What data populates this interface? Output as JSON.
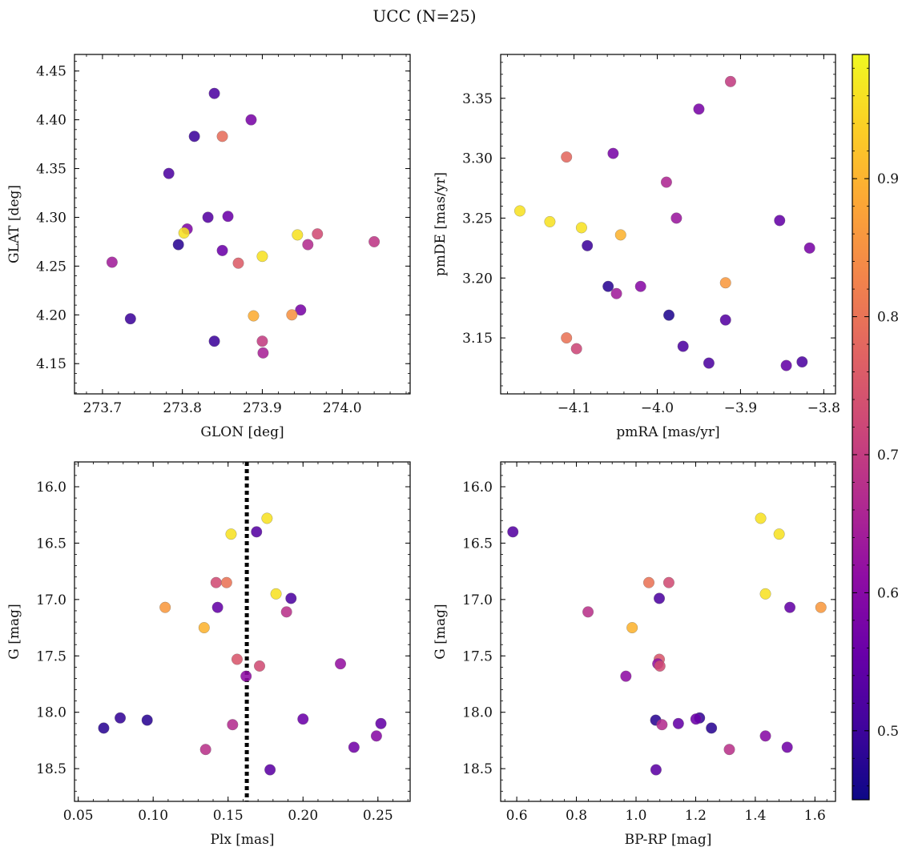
{
  "figure": {
    "title": "UCC (N=25)"
  },
  "colors": {
    "colormap": "plasma",
    "ref_line": "#000000"
  },
  "chart_data": [
    {
      "type": "scatter",
      "xlabel": "GLON [deg]",
      "ylabel": "GLAT [deg]",
      "xlim": [
        273.665,
        274.085
      ],
      "ylim": [
        4.119,
        4.467
      ],
      "xticks": [
        273.7,
        273.8,
        273.9,
        274.0
      ],
      "xtick_labels": [
        "273.7",
        "273.8",
        "273.9",
        "274.0"
      ],
      "yticks": [
        4.15,
        4.2,
        4.25,
        4.3,
        4.35,
        4.4,
        4.45
      ],
      "ytick_labels": [
        "4.15",
        "4.20",
        "4.25",
        "4.30",
        "4.35",
        "4.40",
        "4.45"
      ],
      "points": [
        {
          "x": 273.84,
          "y": 4.427,
          "c": 0.52
        },
        {
          "x": 273.886,
          "y": 4.4,
          "c": 0.58
        },
        {
          "x": 273.815,
          "y": 4.383,
          "c": 0.5
        },
        {
          "x": 273.85,
          "y": 4.383,
          "c": 0.79
        },
        {
          "x": 273.783,
          "y": 4.345,
          "c": 0.52
        },
        {
          "x": 273.857,
          "y": 4.301,
          "c": 0.56
        },
        {
          "x": 273.832,
          "y": 4.3,
          "c": 0.53
        },
        {
          "x": 273.806,
          "y": 4.288,
          "c": 0.59
        },
        {
          "x": 273.802,
          "y": 4.284,
          "c": 0.96
        },
        {
          "x": 273.969,
          "y": 4.283,
          "c": 0.73
        },
        {
          "x": 273.944,
          "y": 4.282,
          "c": 0.96
        },
        {
          "x": 274.04,
          "y": 4.275,
          "c": 0.69
        },
        {
          "x": 273.795,
          "y": 4.272,
          "c": 0.48
        },
        {
          "x": 273.957,
          "y": 4.272,
          "c": 0.67
        },
        {
          "x": 273.85,
          "y": 4.266,
          "c": 0.56
        },
        {
          "x": 273.9,
          "y": 4.26,
          "c": 0.96
        },
        {
          "x": 273.87,
          "y": 4.253,
          "c": 0.76
        },
        {
          "x": 273.712,
          "y": 4.254,
          "c": 0.64
        },
        {
          "x": 273.948,
          "y": 4.205,
          "c": 0.58
        },
        {
          "x": 273.889,
          "y": 4.199,
          "c": 0.89
        },
        {
          "x": 273.937,
          "y": 4.2,
          "c": 0.85
        },
        {
          "x": 273.735,
          "y": 4.196,
          "c": 0.5
        },
        {
          "x": 273.84,
          "y": 4.173,
          "c": 0.5
        },
        {
          "x": 273.9,
          "y": 4.173,
          "c": 0.7
        },
        {
          "x": 273.901,
          "y": 4.161,
          "c": 0.65
        }
      ]
    },
    {
      "type": "scatter",
      "xlabel": "pmRA [mas/yr]",
      "ylabel": "pmDE [mas/yr]",
      "xlim": [
        -4.1881,
        -3.7859
      ],
      "ylim": [
        3.1033,
        3.3866
      ],
      "xticks": [
        -4.1,
        -4.0,
        -3.9,
        -3.8
      ],
      "xtick_labels": [
        "−4.1",
        "−4.0",
        "−3.9",
        "−3.8"
      ],
      "yticks": [
        3.15,
        3.2,
        3.25,
        3.3,
        3.35
      ],
      "ytick_labels": [
        "3.15",
        "3.20",
        "3.25",
        "3.30",
        "3.35"
      ],
      "points": [
        {
          "x": -3.912,
          "y": 3.364,
          "c": 0.7
        },
        {
          "x": -3.95,
          "y": 3.341,
          "c": 0.58
        },
        {
          "x": -4.053,
          "y": 3.304,
          "c": 0.58
        },
        {
          "x": -4.109,
          "y": 3.301,
          "c": 0.78
        },
        {
          "x": -3.989,
          "y": 3.28,
          "c": 0.66
        },
        {
          "x": -4.165,
          "y": 3.256,
          "c": 0.96
        },
        {
          "x": -3.977,
          "y": 3.25,
          "c": 0.63
        },
        {
          "x": -4.129,
          "y": 3.247,
          "c": 0.96
        },
        {
          "x": -3.853,
          "y": 3.248,
          "c": 0.55
        },
        {
          "x": -4.091,
          "y": 3.242,
          "c": 0.96
        },
        {
          "x": -4.044,
          "y": 3.236,
          "c": 0.9
        },
        {
          "x": -4.084,
          "y": 3.227,
          "c": 0.5
        },
        {
          "x": -3.817,
          "y": 3.225,
          "c": 0.58
        },
        {
          "x": -3.918,
          "y": 3.196,
          "c": 0.86
        },
        {
          "x": -4.059,
          "y": 3.193,
          "c": 0.48
        },
        {
          "x": -4.02,
          "y": 3.193,
          "c": 0.6
        },
        {
          "x": -4.049,
          "y": 3.187,
          "c": 0.64
        },
        {
          "x": -3.986,
          "y": 3.169,
          "c": 0.47
        },
        {
          "x": -3.918,
          "y": 3.165,
          "c": 0.53
        },
        {
          "x": -4.109,
          "y": 3.15,
          "c": 0.8
        },
        {
          "x": -3.969,
          "y": 3.143,
          "c": 0.52
        },
        {
          "x": -4.097,
          "y": 3.141,
          "c": 0.72
        },
        {
          "x": -3.938,
          "y": 3.129,
          "c": 0.52
        },
        {
          "x": -3.826,
          "y": 3.13,
          "c": 0.52
        },
        {
          "x": -3.845,
          "y": 3.127,
          "c": 0.55
        }
      ]
    },
    {
      "type": "scatter",
      "xlabel": "Plx [mas]",
      "ylabel": "G [mag]",
      "xlim": [
        0.0475,
        0.2715
      ],
      "ylim": [
        18.79,
        15.78
      ],
      "xticks": [
        0.05,
        0.1,
        0.15,
        0.2,
        0.25
      ],
      "xtick_labels": [
        "0.05",
        "0.10",
        "0.15",
        "0.20",
        "0.25"
      ],
      "yticks": [
        16.0,
        16.5,
        17.0,
        17.5,
        18.0,
        18.5
      ],
      "ytick_labels": [
        "16.0",
        "16.5",
        "17.0",
        "17.5",
        "18.0",
        "18.5"
      ],
      "vline": 0.1625,
      "points": [
        {
          "x": 0.176,
          "y": 16.28,
          "c": 0.96
        },
        {
          "x": 0.152,
          "y": 16.42,
          "c": 0.96
        },
        {
          "x": 0.169,
          "y": 16.4,
          "c": 0.53
        },
        {
          "x": 0.142,
          "y": 16.85,
          "c": 0.73
        },
        {
          "x": 0.149,
          "y": 16.85,
          "c": 0.8
        },
        {
          "x": 0.182,
          "y": 16.95,
          "c": 0.96
        },
        {
          "x": 0.192,
          "y": 16.99,
          "c": 0.52
        },
        {
          "x": 0.108,
          "y": 17.07,
          "c": 0.86
        },
        {
          "x": 0.143,
          "y": 17.07,
          "c": 0.55
        },
        {
          "x": 0.189,
          "y": 17.11,
          "c": 0.68
        },
        {
          "x": 0.134,
          "y": 17.25,
          "c": 0.9
        },
        {
          "x": 0.156,
          "y": 17.53,
          "c": 0.75
        },
        {
          "x": 0.225,
          "y": 17.57,
          "c": 0.62
        },
        {
          "x": 0.171,
          "y": 17.59,
          "c": 0.73
        },
        {
          "x": 0.162,
          "y": 17.68,
          "c": 0.61
        },
        {
          "x": 0.078,
          "y": 18.05,
          "c": 0.49
        },
        {
          "x": 0.096,
          "y": 18.07,
          "c": 0.48
        },
        {
          "x": 0.2,
          "y": 18.06,
          "c": 0.56
        },
        {
          "x": 0.252,
          "y": 18.1,
          "c": 0.55
        },
        {
          "x": 0.153,
          "y": 18.11,
          "c": 0.67
        },
        {
          "x": 0.067,
          "y": 18.14,
          "c": 0.48
        },
        {
          "x": 0.249,
          "y": 18.21,
          "c": 0.6
        },
        {
          "x": 0.234,
          "y": 18.31,
          "c": 0.57
        },
        {
          "x": 0.135,
          "y": 18.33,
          "c": 0.68
        },
        {
          "x": 0.178,
          "y": 18.51,
          "c": 0.54
        }
      ]
    },
    {
      "type": "scatter",
      "xlabel": "BP-RP [mag]",
      "ylabel": "G [mag]",
      "xlim": [
        0.546,
        1.669
      ],
      "ylim": [
        18.79,
        15.78
      ],
      "xticks": [
        0.6,
        0.8,
        1.0,
        1.2,
        1.4,
        1.6
      ],
      "xtick_labels": [
        "0.6",
        "0.8",
        "1.0",
        "1.2",
        "1.4",
        "1.6"
      ],
      "yticks": [
        16.0,
        16.5,
        17.0,
        17.5,
        18.0,
        18.5
      ],
      "ytick_labels": [
        "16.0",
        "16.5",
        "17.0",
        "17.5",
        "18.0",
        "18.5"
      ],
      "points": [
        {
          "x": 1.418,
          "y": 16.28,
          "c": 0.96
        },
        {
          "x": 0.587,
          "y": 16.4,
          "c": 0.53
        },
        {
          "x": 1.48,
          "y": 16.42,
          "c": 0.96
        },
        {
          "x": 1.043,
          "y": 16.85,
          "c": 0.8
        },
        {
          "x": 1.11,
          "y": 16.85,
          "c": 0.73
        },
        {
          "x": 1.434,
          "y": 16.95,
          "c": 0.96
        },
        {
          "x": 1.078,
          "y": 16.99,
          "c": 0.52
        },
        {
          "x": 1.516,
          "y": 17.07,
          "c": 0.55
        },
        {
          "x": 1.62,
          "y": 17.07,
          "c": 0.86
        },
        {
          "x": 0.839,
          "y": 17.11,
          "c": 0.68
        },
        {
          "x": 0.987,
          "y": 17.25,
          "c": 0.9
        },
        {
          "x": 1.078,
          "y": 17.53,
          "c": 0.75
        },
        {
          "x": 1.073,
          "y": 17.57,
          "c": 0.62
        },
        {
          "x": 1.08,
          "y": 17.59,
          "c": 0.73
        },
        {
          "x": 0.966,
          "y": 17.68,
          "c": 0.61
        },
        {
          "x": 1.213,
          "y": 18.05,
          "c": 0.49
        },
        {
          "x": 1.201,
          "y": 18.06,
          "c": 0.56
        },
        {
          "x": 1.066,
          "y": 18.07,
          "c": 0.48
        },
        {
          "x": 1.142,
          "y": 18.1,
          "c": 0.55
        },
        {
          "x": 1.087,
          "y": 18.11,
          "c": 0.67
        },
        {
          "x": 1.253,
          "y": 18.14,
          "c": 0.48
        },
        {
          "x": 1.434,
          "y": 18.21,
          "c": 0.6
        },
        {
          "x": 1.507,
          "y": 18.31,
          "c": 0.57
        },
        {
          "x": 1.313,
          "y": 18.33,
          "c": 0.68
        },
        {
          "x": 1.067,
          "y": 18.51,
          "c": 0.54
        }
      ]
    }
  ],
  "colorbar": {
    "vmin": 0.45,
    "vmax": 0.99,
    "ticks": [
      0.5,
      0.6,
      0.7,
      0.8,
      0.9
    ],
    "tick_labels": [
      "0.5",
      "0.6",
      "0.7",
      "0.8",
      "0.9"
    ]
  }
}
